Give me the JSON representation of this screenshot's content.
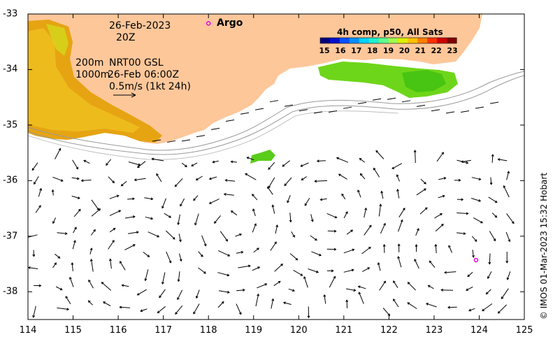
{
  "map": {
    "date": "26-Feb-2023",
    "time": "20Z",
    "depth_200": "200m",
    "depth_1000": "1000m",
    "product": "NRT00 GSL",
    "product_time": "26-Feb 06:00Z",
    "scale_label": "0.5m/s (1kt 24h)",
    "argo_label": "Argo",
    "credit": "© IMOS 01-Mar-2023 15:32 Hobart",
    "land_color": "#fdc79a",
    "argo_color": "#e600e6",
    "lon_ticks": [
      "114",
      "115",
      "116",
      "117",
      "118",
      "119",
      "120",
      "121",
      "122",
      "123",
      "124",
      "125"
    ],
    "lat_ticks": [
      "-33",
      "-34",
      "-35",
      "-36",
      "-37",
      "-38"
    ],
    "argo_floats": [
      {
        "lon": 118.0,
        "lat": -33.17
      },
      {
        "lon": 123.93,
        "lat": -37.43
      }
    ]
  },
  "colorbar": {
    "title": "4h comp, p50, All Sats",
    "ticks": [
      "15",
      "16",
      "17",
      "18",
      "19",
      "20",
      "21",
      "22",
      "23"
    ],
    "colors": [
      "#000080",
      "#0010c8",
      "#0050ff",
      "#0090ff",
      "#00d0ff",
      "#20f0d0",
      "#60ff90",
      "#a0ff50",
      "#e0f000",
      "#ffc000",
      "#ff8000",
      "#ff3000",
      "#d00000",
      "#800000"
    ]
  }
}
